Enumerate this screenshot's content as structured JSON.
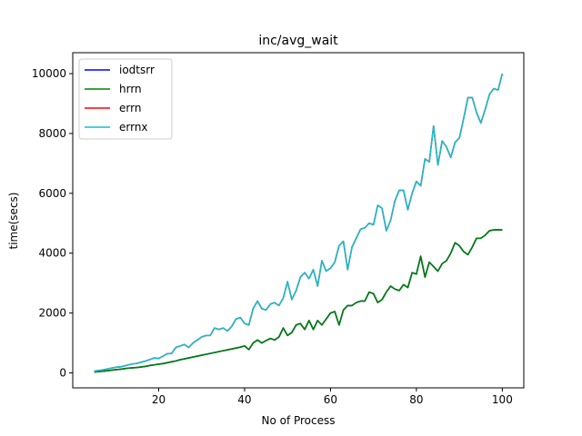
{
  "chart_data": {
    "type": "line",
    "title": "inc/avg_wait",
    "xlabel": "No of Process",
    "ylabel": "time(secs)",
    "xlim": [
      0,
      105
    ],
    "ylim": [
      -500,
      10700
    ],
    "xticks": [
      20,
      40,
      60,
      80,
      100
    ],
    "yticks": [
      0,
      2000,
      4000,
      6000,
      8000,
      10000
    ],
    "grid": false,
    "legend_position": "top-left",
    "x": [
      5,
      6,
      7,
      8,
      9,
      10,
      11,
      12,
      13,
      14,
      15,
      16,
      17,
      18,
      19,
      20,
      21,
      22,
      23,
      24,
      25,
      26,
      27,
      28,
      29,
      30,
      31,
      32,
      33,
      34,
      35,
      36,
      37,
      38,
      39,
      40,
      41,
      42,
      43,
      44,
      45,
      46,
      47,
      48,
      49,
      50,
      51,
      52,
      53,
      54,
      55,
      56,
      57,
      58,
      59,
      60,
      61,
      62,
      63,
      64,
      65,
      66,
      67,
      68,
      69,
      70,
      71,
      72,
      73,
      74,
      75,
      76,
      77,
      78,
      79,
      80,
      81,
      82,
      83,
      84,
      85,
      86,
      87,
      88,
      89,
      90,
      91,
      92,
      93,
      94,
      95,
      96,
      97,
      98,
      99,
      100
    ],
    "series": [
      {
        "name": "iodtsrr",
        "color": "#0000ff",
        "values": [
          30,
          45,
          55,
          70,
          90,
          110,
          120,
          140,
          160,
          170,
          180,
          200,
          220,
          250,
          270,
          290,
          310,
          340,
          370,
          400,
          440,
          470,
          500,
          530,
          560,
          590,
          620,
          650,
          680,
          710,
          740,
          770,
          800,
          830,
          860,
          900,
          780,
          1000,
          1100,
          1000,
          1080,
          1150,
          1100,
          1200,
          1500,
          1250,
          1350,
          1600,
          1650,
          1450,
          1750,
          1450,
          1750,
          1600,
          1800,
          2000,
          2050,
          1600,
          2100,
          2250,
          2250,
          2350,
          2400,
          2400,
          2700,
          2650,
          2350,
          2450,
          2700,
          2900,
          2800,
          2750,
          2950,
          2850,
          3350,
          3300,
          3900,
          3200,
          3700,
          3550,
          3400,
          3650,
          3750,
          4000,
          4350,
          4250,
          4050,
          3950,
          4200,
          4500,
          4500,
          4600,
          4750,
          4780,
          4780,
          4780
        ]
      },
      {
        "name": "hrrn",
        "color": "#008000",
        "values": [
          30,
          45,
          55,
          70,
          90,
          110,
          120,
          140,
          160,
          170,
          180,
          200,
          220,
          250,
          270,
          290,
          310,
          340,
          370,
          400,
          440,
          470,
          500,
          530,
          560,
          590,
          620,
          650,
          680,
          710,
          740,
          770,
          800,
          830,
          860,
          900,
          780,
          1000,
          1100,
          1000,
          1080,
          1150,
          1100,
          1200,
          1500,
          1250,
          1350,
          1600,
          1650,
          1450,
          1750,
          1450,
          1750,
          1600,
          1800,
          2000,
          2050,
          1600,
          2100,
          2250,
          2250,
          2350,
          2400,
          2400,
          2700,
          2650,
          2350,
          2450,
          2700,
          2900,
          2800,
          2750,
          2950,
          2850,
          3350,
          3300,
          3900,
          3200,
          3700,
          3550,
          3400,
          3650,
          3750,
          4000,
          4350,
          4250,
          4050,
          3950,
          4200,
          4500,
          4500,
          4600,
          4750,
          4780,
          4780,
          4780
        ]
      },
      {
        "name": "errn",
        "color": "#ff0000",
        "values": [
          60,
          80,
          100,
          130,
          160,
          190,
          200,
          230,
          270,
          300,
          320,
          360,
          400,
          450,
          500,
          480,
          560,
          640,
          650,
          850,
          900,
          950,
          850,
          1000,
          1100,
          1200,
          1250,
          1250,
          1500,
          1450,
          1500,
          1400,
          1550,
          1800,
          1850,
          1650,
          1600,
          2150,
          2400,
          2150,
          2100,
          2300,
          2350,
          2250,
          2500,
          3050,
          2450,
          2750,
          3200,
          3350,
          3150,
          3450,
          2900,
          3750,
          3400,
          3500,
          3700,
          4250,
          4400,
          3450,
          4200,
          4500,
          4800,
          4850,
          5000,
          4950,
          5600,
          5500,
          4750,
          5100,
          5750,
          6100,
          6100,
          5450,
          6000,
          6400,
          6250,
          7150,
          7050,
          8250,
          6950,
          7750,
          7550,
          7200,
          7700,
          7850,
          8500,
          9200,
          9200,
          8700,
          8350,
          8800,
          9300,
          9500,
          9450,
          10000
        ]
      },
      {
        "name": "errnx",
        "color": "#17becf",
        "values": [
          60,
          80,
          100,
          130,
          160,
          190,
          200,
          230,
          270,
          300,
          320,
          360,
          400,
          450,
          500,
          480,
          560,
          640,
          650,
          850,
          900,
          950,
          850,
          1000,
          1100,
          1200,
          1250,
          1250,
          1500,
          1450,
          1500,
          1400,
          1550,
          1800,
          1850,
          1650,
          1600,
          2150,
          2400,
          2150,
          2100,
          2300,
          2350,
          2250,
          2500,
          3050,
          2450,
          2750,
          3200,
          3350,
          3150,
          3450,
          2900,
          3750,
          3400,
          3500,
          3700,
          4250,
          4400,
          3450,
          4200,
          4500,
          4800,
          4850,
          5000,
          4950,
          5600,
          5500,
          4750,
          5100,
          5750,
          6100,
          6100,
          5450,
          6000,
          6400,
          6250,
          7150,
          7050,
          8250,
          6950,
          7750,
          7550,
          7200,
          7700,
          7850,
          8500,
          9200,
          9200,
          8700,
          8350,
          8800,
          9300,
          9500,
          9450,
          10000
        ]
      }
    ]
  }
}
